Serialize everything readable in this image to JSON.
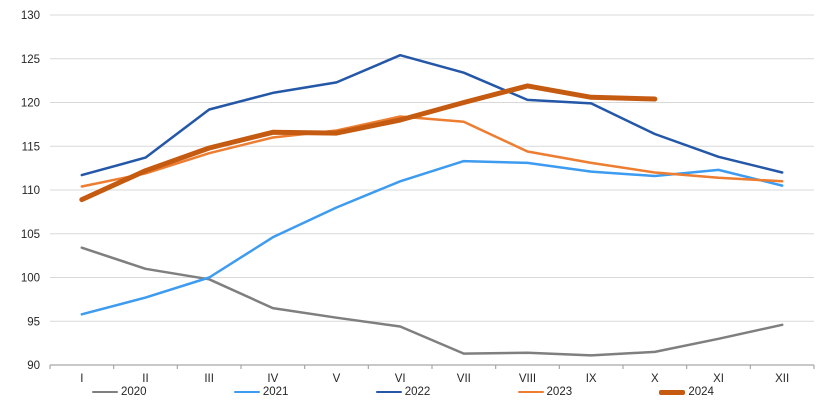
{
  "chart_data": {
    "type": "line",
    "title": "",
    "xlabel": "",
    "ylabel": "",
    "categories": [
      "I",
      "II",
      "III",
      "IV",
      "V",
      "VI",
      "VII",
      "VIII",
      "IX",
      "X",
      "XI",
      "XII"
    ],
    "series": [
      {
        "name": "2020",
        "color": "#7F7F7F",
        "width": 2.5,
        "values": [
          103.4,
          101.0,
          99.8,
          96.5,
          95.4,
          94.4,
          91.3,
          91.4,
          91.1,
          91.5,
          93.0,
          94.6
        ]
      },
      {
        "name": "2021",
        "color": "#3D9BF0",
        "width": 2.5,
        "values": [
          95.8,
          97.7,
          100.0,
          104.6,
          108.0,
          111.0,
          113.3,
          113.1,
          112.1,
          111.6,
          112.3,
          110.5
        ]
      },
      {
        "name": "2022",
        "color": "#2457A7",
        "width": 2.5,
        "values": [
          111.7,
          113.7,
          119.2,
          121.1,
          122.3,
          125.4,
          123.4,
          120.3,
          119.9,
          116.4,
          113.8,
          112.0
        ]
      },
      {
        "name": "2023",
        "color": "#ED7D31",
        "width": 2.5,
        "values": [
          110.4,
          111.9,
          114.2,
          116.0,
          116.8,
          118.4,
          117.8,
          114.4,
          113.1,
          112.0,
          111.4,
          111.0
        ]
      },
      {
        "name": "2024",
        "color": "#C55A11",
        "width": 5,
        "values": [
          108.9,
          112.2,
          114.8,
          116.6,
          116.5,
          118.0,
          120.0,
          121.9,
          120.6,
          120.4
        ]
      }
    ],
    "ylim": [
      90,
      130
    ],
    "y_ticks": [
      90,
      95,
      100,
      105,
      110,
      115,
      120,
      125,
      130
    ],
    "grid": true,
    "legend_position": "bottom"
  },
  "style": {
    "gridline_color": "#D9D9D9",
    "axis_color": "#A6A6A6",
    "label_color": "#262626",
    "background": "#FFFFFF"
  }
}
